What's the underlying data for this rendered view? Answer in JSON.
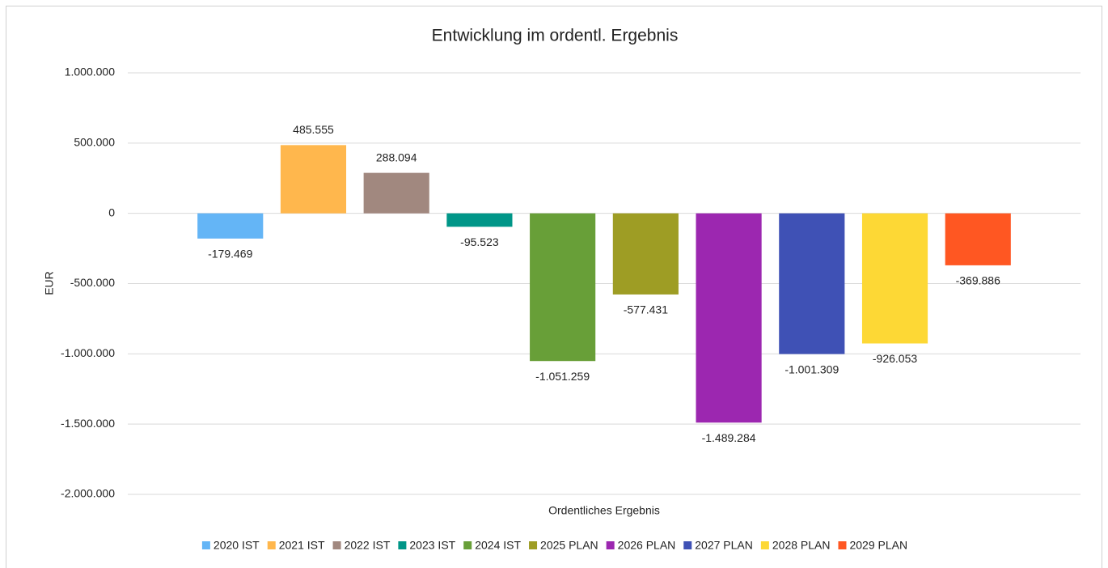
{
  "chart_data": {
    "type": "bar",
    "title": "Entwicklung im ordentl. Ergebnis",
    "ylabel": "EUR",
    "xlabel": "Ordentliches Ergebnis",
    "categories": [
      "Ordentliches Ergebnis"
    ],
    "series": [
      {
        "name": "2020 IST",
        "color": "#64b5f6",
        "values": [
          -179469
        ],
        "value_labels": [
          "-179.469"
        ]
      },
      {
        "name": "2021 IST",
        "color": "#ffb74d",
        "values": [
          485555
        ],
        "value_labels": [
          "485.555"
        ]
      },
      {
        "name": "2022 IST",
        "color": "#a1887f",
        "values": [
          288094
        ],
        "value_labels": [
          "288.094"
        ]
      },
      {
        "name": "2023 IST",
        "color": "#009688",
        "values": [
          -95523
        ],
        "value_labels": [
          "-95.523"
        ]
      },
      {
        "name": "2024 IST",
        "color": "#689f38",
        "values": [
          -1051259
        ],
        "value_labels": [
          "-1.051.259"
        ]
      },
      {
        "name": "2025 PLAN",
        "color": "#9e9d24",
        "values": [
          -577431
        ],
        "value_labels": [
          "-577.431"
        ]
      },
      {
        "name": "2026 PLAN",
        "color": "#9c27b0",
        "values": [
          -1489284
        ],
        "value_labels": [
          "-1.489.284"
        ]
      },
      {
        "name": "2027 PLAN",
        "color": "#3f51b5",
        "values": [
          -1001309
        ],
        "value_labels": [
          "-1.001.309"
        ]
      },
      {
        "name": "2028 PLAN",
        "color": "#fdd835",
        "values": [
          -926053
        ],
        "value_labels": [
          "-926.053"
        ]
      },
      {
        "name": "2029 PLAN",
        "color": "#ff5722",
        "values": [
          -369886
        ],
        "value_labels": [
          "-369.886"
        ]
      }
    ],
    "ylim": [
      -2000000,
      1000000
    ],
    "yticks": [
      {
        "value": -2000000,
        "label": "-2.000.000"
      },
      {
        "value": -1500000,
        "label": "-1.500.000"
      },
      {
        "value": -1000000,
        "label": "-1.000.000"
      },
      {
        "value": -500000,
        "label": "-500.000"
      },
      0,
      {
        "value": 500000,
        "label": "500.000"
      },
      {
        "value": 1000000,
        "label": "1.000.000"
      }
    ],
    "grid": true,
    "legend": "bottom"
  }
}
